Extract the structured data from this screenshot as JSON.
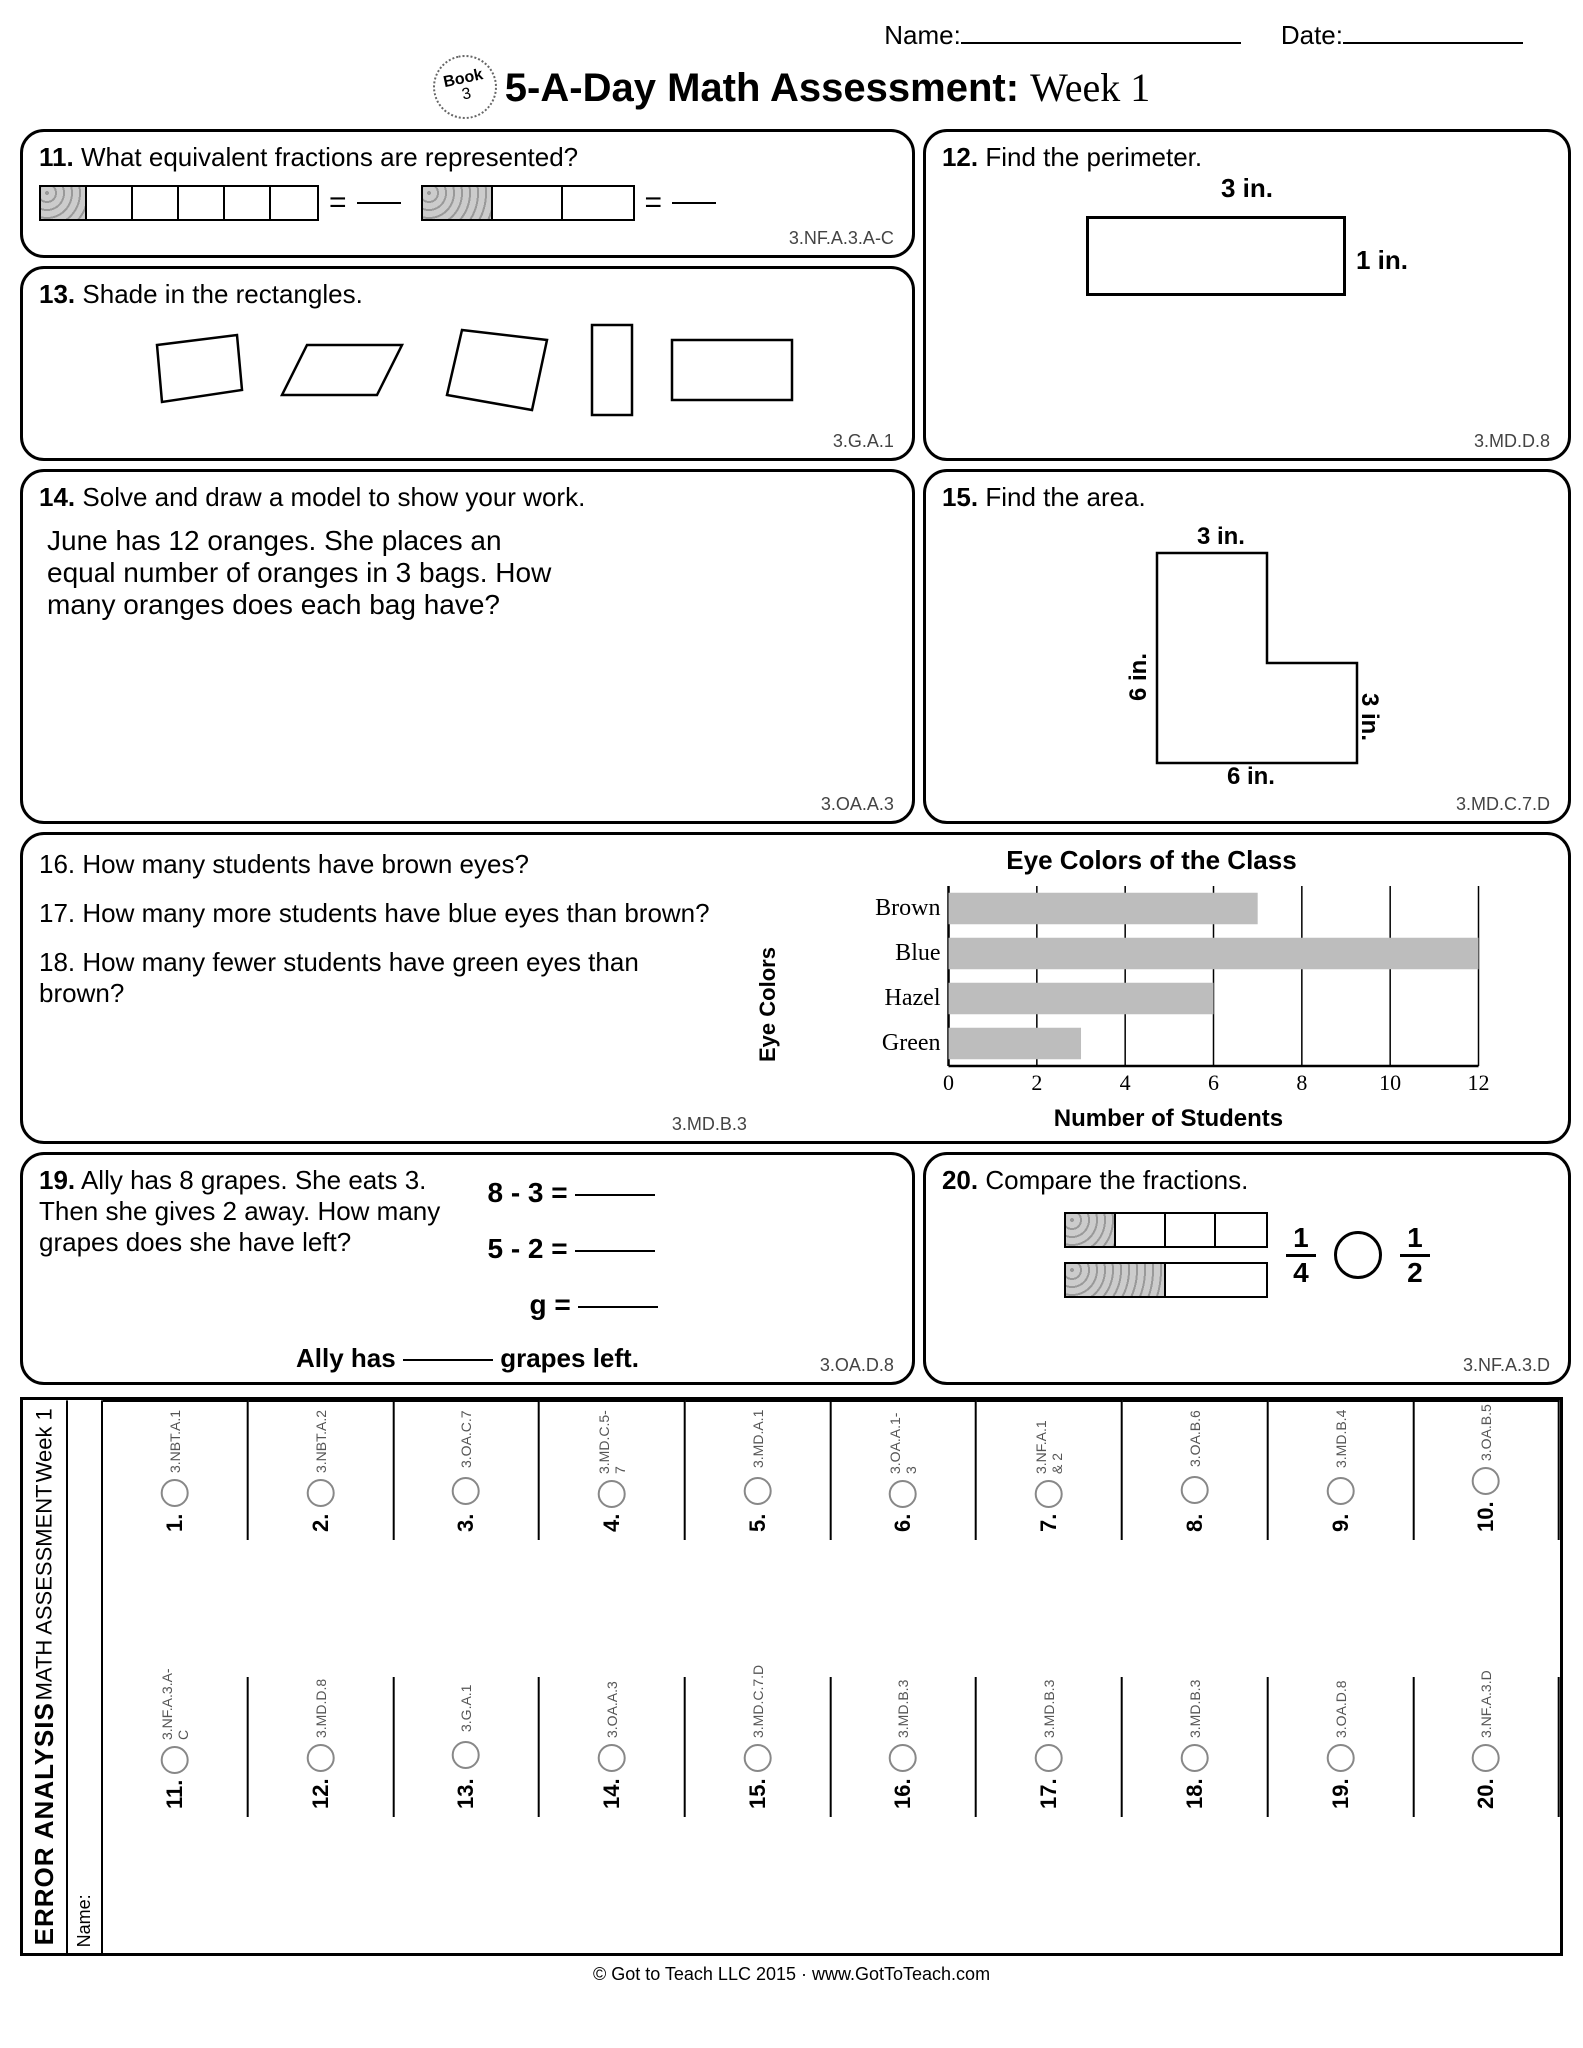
{
  "header": {
    "name_label": "Name:",
    "date_label": "Date:"
  },
  "badge": {
    "line1": "Book",
    "line2": "3"
  },
  "title": {
    "main": "5-A-Day Math Assessment:",
    "week": "Week 1"
  },
  "p11": {
    "num": "11.",
    "text": "What equivalent fractions are represented?",
    "std": "3.NF.A.3.A-C",
    "bar1": {
      "cells": 6,
      "shaded": [
        0
      ]
    },
    "bar2": {
      "cells": 3,
      "shaded": [
        0
      ]
    }
  },
  "p12": {
    "num": "12.",
    "text": "Find the perimeter.",
    "top": "3 in.",
    "side": "1 in.",
    "std": "3.MD.D.8"
  },
  "p13": {
    "num": "13.",
    "text": "Shade in the rectangles.",
    "std": "3.G.A.1"
  },
  "p14": {
    "num": "14.",
    "text": "Solve and draw a model to show your work.",
    "body": "June has 12 oranges. She places an equal number of oranges in 3 bags. How many oranges does each bag have?",
    "std": "3.OA.A.3"
  },
  "p15": {
    "num": "15.",
    "text": "Find the area.",
    "top": "3 in.",
    "left": "6 in.",
    "right": "3 in.",
    "bottom": "6 in.",
    "std": "3.MD.C.7.D"
  },
  "chart": {
    "q16": "16. How many students have brown eyes?",
    "q17": "17. How many more students have blue eyes than brown?",
    "q18": "18. How many fewer students have green eyes than brown?",
    "std": "3.MD.B.3",
    "title": "Eye Colors of the Class",
    "ylabel": "Eye Colors",
    "xlabel": "Number of Students",
    "categories": [
      "Brown",
      "Blue",
      "Hazel",
      "Green"
    ],
    "values": [
      7,
      12,
      6,
      3
    ],
    "xmax": 12,
    "xstep": 2,
    "bar_color": "#bdbdbd",
    "grid_color": "#000000"
  },
  "p19": {
    "num": "19.",
    "text": "Ally has 8 grapes. She eats 3.  Then she gives 2 away. How many grapes does she have left?",
    "eq1": "8  -  3  =",
    "eq2": "5  -  2  =",
    "eq3": "g  =",
    "fillin_pre": "Ally has",
    "fillin_post": "grapes left.",
    "std": "3.OA.D.8"
  },
  "p20": {
    "num": "20.",
    "text": "Compare the fractions.",
    "bar1": {
      "cells": 4,
      "shaded": [
        0
      ]
    },
    "bar2": {
      "cells": 2,
      "shaded": [
        0
      ]
    },
    "frac1_n": "1",
    "frac1_d": "4",
    "frac2_n": "1",
    "frac2_d": "2",
    "std": "3.NF.A.3.D"
  },
  "ea": {
    "title1": "ERROR ANALYSIS",
    "title2": "MATH ASSESSMENT",
    "title3": "Week 1",
    "name": "Name:",
    "items": [
      {
        "n": "1.",
        "s": "3.NBT.A.1"
      },
      {
        "n": "11.",
        "s": "3.NF.A.3.A-C"
      },
      {
        "n": "2.",
        "s": "3.NBT.A.2"
      },
      {
        "n": "12.",
        "s": "3.MD.D.8"
      },
      {
        "n": "3.",
        "s": "3.OA.C.7"
      },
      {
        "n": "13.",
        "s": "3.G.A.1"
      },
      {
        "n": "4.",
        "s": "3.MD.C.5-7"
      },
      {
        "n": "14.",
        "s": "3.OA.A.3"
      },
      {
        "n": "5.",
        "s": "3.MD.A.1"
      },
      {
        "n": "15.",
        "s": "3.MD.C.7.D"
      },
      {
        "n": "6.",
        "s": "3.OA.A.1-3"
      },
      {
        "n": "16.",
        "s": "3.MD.B.3"
      },
      {
        "n": "7.",
        "s": "3.NF.A.1 & 2"
      },
      {
        "n": "17.",
        "s": "3.MD.B.3"
      },
      {
        "n": "8.",
        "s": "3.OA.B.6"
      },
      {
        "n": "18.",
        "s": "3.MD.B.3"
      },
      {
        "n": "9.",
        "s": "3.MD.B.4"
      },
      {
        "n": "19.",
        "s": "3.OA.D.8"
      },
      {
        "n": "10.",
        "s": "3.OA.B.5"
      },
      {
        "n": "20.",
        "s": "3.NF.A.3.D"
      }
    ]
  },
  "footer": "© Got to Teach LLC 2015 · www.GotToTeach.com"
}
